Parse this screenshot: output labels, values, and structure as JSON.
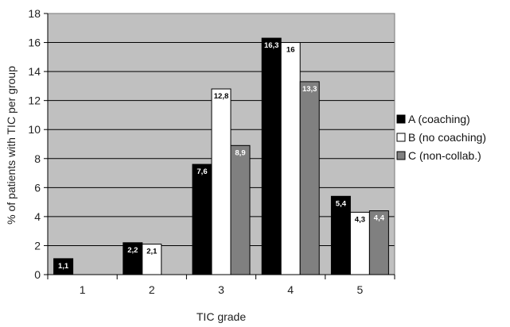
{
  "chart_data": {
    "type": "bar",
    "xlabel": "TIC grade",
    "ylabel": "% of patients with TIC per group",
    "categories": [
      "1",
      "2",
      "3",
      "4",
      "5"
    ],
    "ylim": [
      0,
      18
    ],
    "yticks": [
      "0",
      "2",
      "4",
      "6",
      "8",
      "10",
      "12",
      "14",
      "16",
      "18"
    ],
    "grid": true,
    "legend_position": "right",
    "plot_background": "#c0c0c0",
    "series": [
      {
        "name": "A (coaching)",
        "color": "#000000",
        "label_color": "#ffffff",
        "values": [
          1.1,
          2.2,
          7.6,
          16.3,
          5.4
        ],
        "labels": [
          "1,1",
          "2,2",
          "7,6",
          "16,3",
          "5,4"
        ]
      },
      {
        "name": "B (no coaching)",
        "color": "#ffffff",
        "label_color": "#000000",
        "values": [
          null,
          2.1,
          12.8,
          16,
          4.3
        ],
        "labels": [
          "",
          "2,1",
          "12,8",
          "16",
          "4,3"
        ]
      },
      {
        "name": "C (non-collab.)",
        "color": "#808080",
        "label_color": "#ffffff",
        "values": [
          null,
          null,
          8.9,
          13.3,
          4.4
        ],
        "labels": [
          "",
          "",
          "8,9",
          "13,3",
          "4,4"
        ]
      }
    ]
  }
}
